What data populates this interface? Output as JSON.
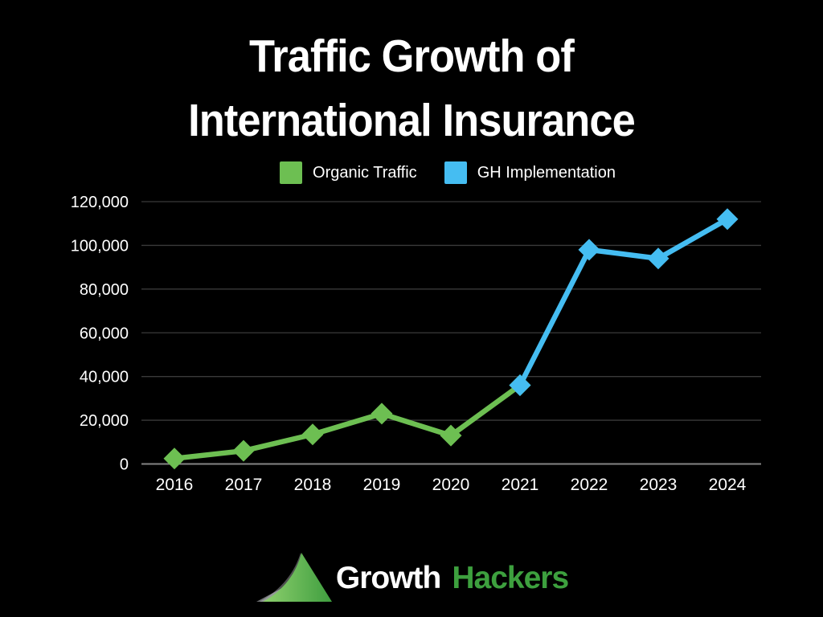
{
  "title": {
    "line1": "Traffic Growth of",
    "line2": "International Insurance"
  },
  "legend": [
    {
      "label": "Organic Traffic",
      "color": "#6dbf52"
    },
    {
      "label": "GH Implementation",
      "color": "#45bdf2"
    }
  ],
  "chart_data": {
    "type": "line",
    "title": "Traffic Growth of International Insurance",
    "x": [
      "2016",
      "2017",
      "2018",
      "2019",
      "2020",
      "2021",
      "2022",
      "2023",
      "2024"
    ],
    "series": [
      {
        "name": "Organic Traffic",
        "color": "#6dbf52",
        "x_start_index": 0,
        "values": [
          2500,
          6000,
          13500,
          23000,
          13000,
          36000
        ]
      },
      {
        "name": "GH Implementation",
        "color": "#45bdf2",
        "x_start_index": 5,
        "values": [
          36000,
          98000,
          94000,
          112000
        ]
      }
    ],
    "ylim": [
      0,
      120000
    ],
    "yticks": [
      0,
      20000,
      40000,
      60000,
      80000,
      100000,
      120000
    ],
    "ytick_labels": [
      "0",
      "20,000",
      "40,000",
      "60,000",
      "80,000",
      "100,000",
      "120,000"
    ],
    "xlabel": "",
    "ylabel": "",
    "grid": true,
    "legend_position": "top-center",
    "marker": "diamond",
    "colors": {
      "background": "#000000",
      "gridline": "#3a3a3a",
      "zero_axis": "#858585",
      "tick_text": "#ffffff"
    }
  },
  "footer": {
    "logo_growth": "Growth",
    "logo_hackers": "Hackers"
  }
}
